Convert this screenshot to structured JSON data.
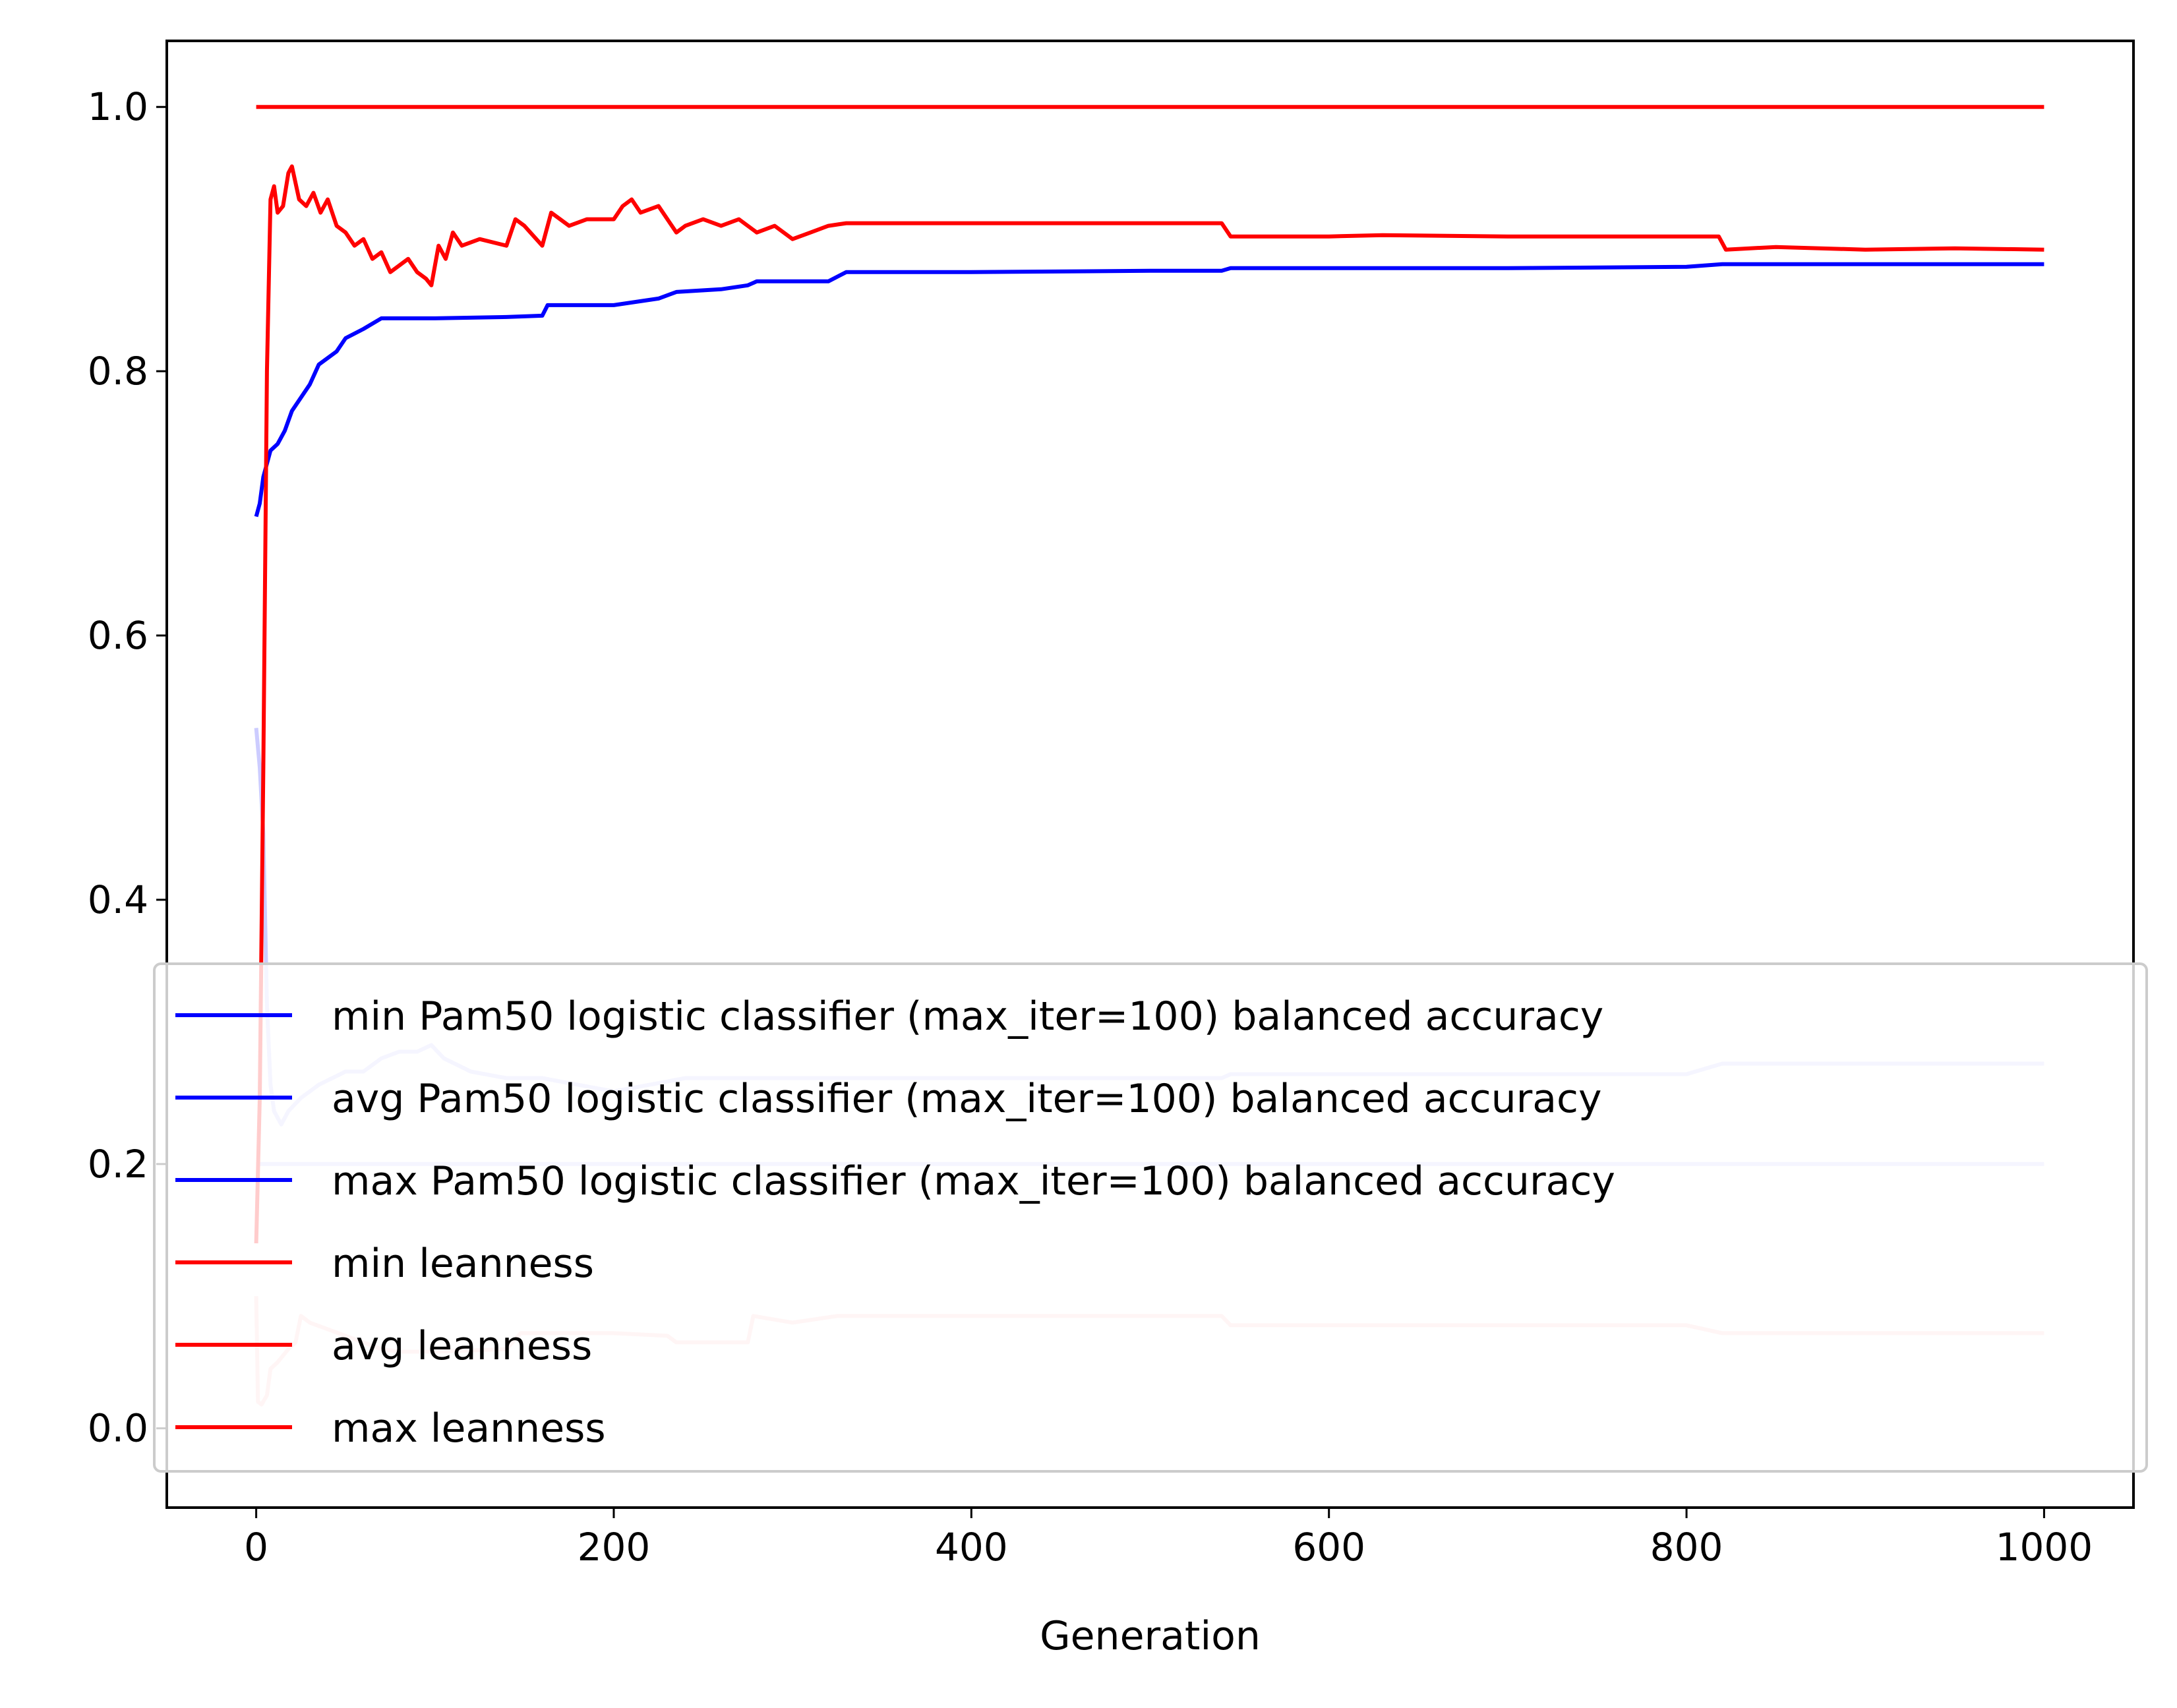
{
  "chart_data": {
    "type": "line",
    "xlabel": "Generation",
    "ylabel": "",
    "xlim": [
      -50,
      1050
    ],
    "ylim": [
      -0.06,
      1.05
    ],
    "xticks": [
      0,
      200,
      400,
      600,
      800,
      1000
    ],
    "xtick_labels": [
      "0",
      "200",
      "400",
      "600",
      "800",
      "1000"
    ],
    "yticks": [
      0.0,
      0.2,
      0.4,
      0.6,
      0.8,
      1.0
    ],
    "ytick_labels": [
      "0.0",
      "0.2",
      "0.4",
      "0.6",
      "0.8",
      "1.0"
    ],
    "grid": false,
    "legend_position": "lower-right",
    "series": [
      {
        "name": "min Pam50 logistic classifier (max_iter=100) balanced accuracy",
        "color": "#0000ff",
        "opacity": 0.2,
        "points": [
          [
            0,
            0.2
          ],
          [
            1000,
            0.2
          ]
        ]
      },
      {
        "name": "avg Pam50 logistic classifier (max_iter=100) balanced accuracy",
        "color": "#0000ff",
        "opacity": 0.2,
        "points": [
          [
            0,
            0.53
          ],
          [
            2,
            0.5
          ],
          [
            4,
            0.45
          ],
          [
            6,
            0.32
          ],
          [
            8,
            0.26
          ],
          [
            10,
            0.24
          ],
          [
            14,
            0.23
          ],
          [
            18,
            0.24
          ],
          [
            25,
            0.25
          ],
          [
            35,
            0.26
          ],
          [
            50,
            0.27
          ],
          [
            60,
            0.27
          ],
          [
            70,
            0.28
          ],
          [
            80,
            0.285
          ],
          [
            90,
            0.285
          ],
          [
            98,
            0.29
          ],
          [
            105,
            0.28
          ],
          [
            120,
            0.27
          ],
          [
            140,
            0.265
          ],
          [
            160,
            0.265
          ],
          [
            180,
            0.26
          ],
          [
            200,
            0.255
          ],
          [
            220,
            0.26
          ],
          [
            240,
            0.265
          ],
          [
            260,
            0.265
          ],
          [
            280,
            0.265
          ],
          [
            300,
            0.265
          ],
          [
            320,
            0.265
          ],
          [
            350,
            0.265
          ],
          [
            400,
            0.265
          ],
          [
            450,
            0.265
          ],
          [
            500,
            0.265
          ],
          [
            540,
            0.265
          ],
          [
            545,
            0.268
          ],
          [
            600,
            0.268
          ],
          [
            700,
            0.268
          ],
          [
            800,
            0.268
          ],
          [
            820,
            0.276
          ],
          [
            900,
            0.276
          ],
          [
            1000,
            0.276
          ]
        ]
      },
      {
        "name": "max Pam50 logistic classifier (max_iter=100) balanced accuracy",
        "color": "#0000ff",
        "opacity": 1,
        "points": [
          [
            0,
            0.69
          ],
          [
            2,
            0.7
          ],
          [
            4,
            0.72
          ],
          [
            8,
            0.74
          ],
          [
            12,
            0.745
          ],
          [
            16,
            0.755
          ],
          [
            20,
            0.77
          ],
          [
            25,
            0.78
          ],
          [
            30,
            0.79
          ],
          [
            35,
            0.805
          ],
          [
            40,
            0.81
          ],
          [
            45,
            0.815
          ],
          [
            50,
            0.825
          ],
          [
            60,
            0.832
          ],
          [
            70,
            0.84
          ],
          [
            100,
            0.84
          ],
          [
            140,
            0.841
          ],
          [
            160,
            0.842
          ],
          [
            163,
            0.85
          ],
          [
            200,
            0.85
          ],
          [
            225,
            0.855
          ],
          [
            235,
            0.86
          ],
          [
            260,
            0.862
          ],
          [
            275,
            0.865
          ],
          [
            280,
            0.868
          ],
          [
            320,
            0.868
          ],
          [
            330,
            0.875
          ],
          [
            400,
            0.875
          ],
          [
            500,
            0.876
          ],
          [
            540,
            0.876
          ],
          [
            545,
            0.878
          ],
          [
            600,
            0.878
          ],
          [
            700,
            0.878
          ],
          [
            800,
            0.879
          ],
          [
            820,
            0.881
          ],
          [
            900,
            0.881
          ],
          [
            1000,
            0.881
          ]
        ]
      },
      {
        "name": "min leanness",
        "color": "#ff0000",
        "opacity": 0.2,
        "points": [
          [
            0,
            0.1
          ],
          [
            1,
            0.02
          ],
          [
            3,
            0.018
          ],
          [
            6,
            0.025
          ],
          [
            8,
            0.045
          ],
          [
            12,
            0.05
          ],
          [
            18,
            0.06
          ],
          [
            22,
            0.065
          ],
          [
            25,
            0.085
          ],
          [
            30,
            0.08
          ],
          [
            40,
            0.075
          ],
          [
            50,
            0.07
          ],
          [
            60,
            0.065
          ],
          [
            70,
            0.06
          ],
          [
            80,
            0.058
          ],
          [
            100,
            0.058
          ],
          [
            140,
            0.06
          ],
          [
            148,
            0.072
          ],
          [
            160,
            0.072
          ],
          [
            200,
            0.072
          ],
          [
            230,
            0.07
          ],
          [
            235,
            0.065
          ],
          [
            260,
            0.065
          ],
          [
            275,
            0.065
          ],
          [
            278,
            0.085
          ],
          [
            300,
            0.08
          ],
          [
            325,
            0.085
          ],
          [
            400,
            0.085
          ],
          [
            500,
            0.085
          ],
          [
            540,
            0.085
          ],
          [
            545,
            0.078
          ],
          [
            600,
            0.078
          ],
          [
            700,
            0.078
          ],
          [
            800,
            0.078
          ],
          [
            820,
            0.072
          ],
          [
            900,
            0.072
          ],
          [
            1000,
            0.072
          ]
        ]
      },
      {
        "name": "avg leanness",
        "color": "#ff0000",
        "opacity": 1,
        "points": [
          [
            0,
            0.14
          ],
          [
            2,
            0.25
          ],
          [
            4,
            0.5
          ],
          [
            6,
            0.8
          ],
          [
            8,
            0.93
          ],
          [
            10,
            0.94
          ],
          [
            12,
            0.92
          ],
          [
            15,
            0.925
          ],
          [
            18,
            0.95
          ],
          [
            20,
            0.955
          ],
          [
            24,
            0.93
          ],
          [
            28,
            0.925
          ],
          [
            32,
            0.935
          ],
          [
            36,
            0.92
          ],
          [
            40,
            0.93
          ],
          [
            45,
            0.91
          ],
          [
            50,
            0.905
          ],
          [
            55,
            0.895
          ],
          [
            60,
            0.9
          ],
          [
            65,
            0.885
          ],
          [
            70,
            0.89
          ],
          [
            75,
            0.875
          ],
          [
            80,
            0.88
          ],
          [
            85,
            0.885
          ],
          [
            90,
            0.875
          ],
          [
            95,
            0.87
          ],
          [
            98,
            0.865
          ],
          [
            102,
            0.895
          ],
          [
            106,
            0.885
          ],
          [
            110,
            0.905
          ],
          [
            115,
            0.895
          ],
          [
            125,
            0.9
          ],
          [
            140,
            0.895
          ],
          [
            145,
            0.915
          ],
          [
            150,
            0.91
          ],
          [
            160,
            0.895
          ],
          [
            165,
            0.92
          ],
          [
            170,
            0.915
          ],
          [
            175,
            0.91
          ],
          [
            185,
            0.915
          ],
          [
            200,
            0.915
          ],
          [
            205,
            0.925
          ],
          [
            210,
            0.93
          ],
          [
            215,
            0.92
          ],
          [
            225,
            0.925
          ],
          [
            230,
            0.915
          ],
          [
            235,
            0.905
          ],
          [
            240,
            0.91
          ],
          [
            250,
            0.915
          ],
          [
            260,
            0.91
          ],
          [
            270,
            0.915
          ],
          [
            280,
            0.905
          ],
          [
            290,
            0.91
          ],
          [
            300,
            0.9
          ],
          [
            310,
            0.905
          ],
          [
            320,
            0.91
          ],
          [
            330,
            0.912
          ],
          [
            350,
            0.912
          ],
          [
            400,
            0.912
          ],
          [
            450,
            0.912
          ],
          [
            500,
            0.912
          ],
          [
            540,
            0.912
          ],
          [
            545,
            0.902
          ],
          [
            600,
            0.902
          ],
          [
            630,
            0.903
          ],
          [
            700,
            0.902
          ],
          [
            800,
            0.902
          ],
          [
            818,
            0.902
          ],
          [
            822,
            0.892
          ],
          [
            850,
            0.894
          ],
          [
            900,
            0.892
          ],
          [
            950,
            0.893
          ],
          [
            1000,
            0.892
          ]
        ]
      },
      {
        "name": "max leanness",
        "color": "#ff0000",
        "opacity": 1,
        "points": [
          [
            0,
            1.0
          ],
          [
            1000,
            1.0
          ]
        ]
      }
    ]
  }
}
